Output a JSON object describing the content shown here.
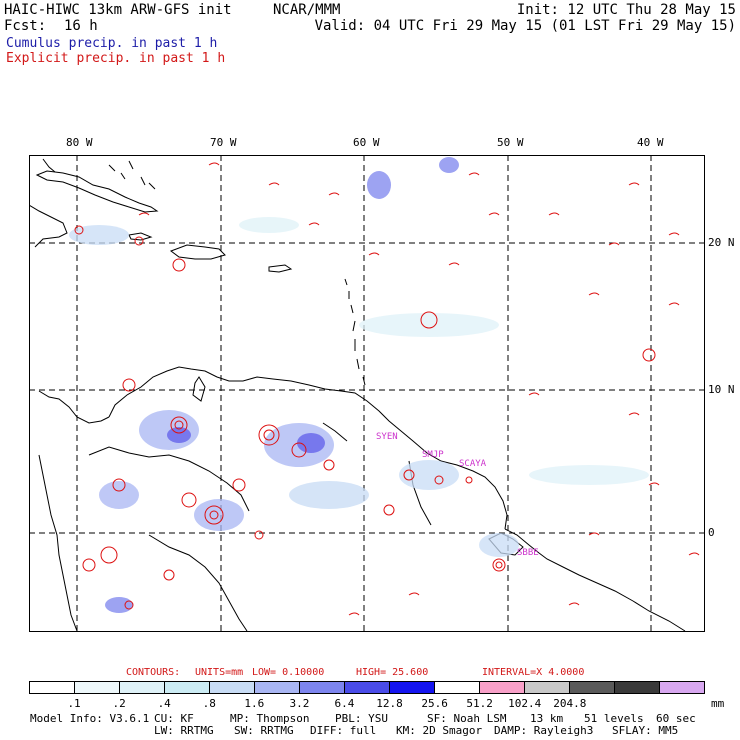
{
  "header": {
    "model": "HAIC-HIWC 13km ARW-GFS init",
    "org": "NCAR/MMM",
    "fcst_label": "Fcst:",
    "fcst_value": "16 h",
    "init": "Init: 12 UTC Thu 28 May 15",
    "valid": "Valid: 04 UTC Fri 29 May 15 (01 LST Fri 29 May 15)",
    "legend_cumulus": "Cumulus precip. in past 1 h",
    "legend_explicit": "Explicit precip. in past 1 h"
  },
  "map": {
    "lon_labels": [
      "80 W",
      "70 W",
      "60 W",
      "50 W",
      "40 W"
    ],
    "lat_labels": [
      "20 N",
      "10 N",
      "0"
    ],
    "stations": [
      "SYEN",
      "SMJP",
      "SCAYA",
      "SBBE"
    ]
  },
  "contours": {
    "title": "CONTOURS:",
    "units": "UNITS=mm",
    "low": "LOW= 0.10000",
    "high": "HIGH= 25.600",
    "interval": "INTERVAL=X 4.0000"
  },
  "colorbar": {
    "colors": [
      "#ffffff",
      "#eef8fb",
      "#dff2f8",
      "#ccecf4",
      "#c8dcf5",
      "#a9b6f3",
      "#7d85ee",
      "#4a4ce8",
      "#1414f0",
      "#ffffff",
      "#f8a0c8",
      "#c8c8c8",
      "#5a5a5a",
      "#3a3a3a",
      "#d8a8f0"
    ],
    "tick_labels": [
      ".1",
      ".2",
      ".4",
      ".8",
      "1.6",
      "3.2",
      "6.4",
      "12.8",
      "25.6",
      "51.2",
      "102.4",
      "204.8"
    ],
    "units": "mm"
  },
  "model_info": {
    "line1": [
      "Model Info: V3.6.1",
      "CU: KF",
      "MP: Thompson",
      "PBL: YSU",
      "SF: Noah LSM",
      "13 km",
      "51 levels",
      "60 sec"
    ],
    "line2": [
      "LW: RRTMG",
      "SW: RRTMG",
      "DIFF: full",
      "KM: 2D Smagor",
      "DAMP: Rayleigh3",
      "SFLAY: MM5"
    ]
  }
}
